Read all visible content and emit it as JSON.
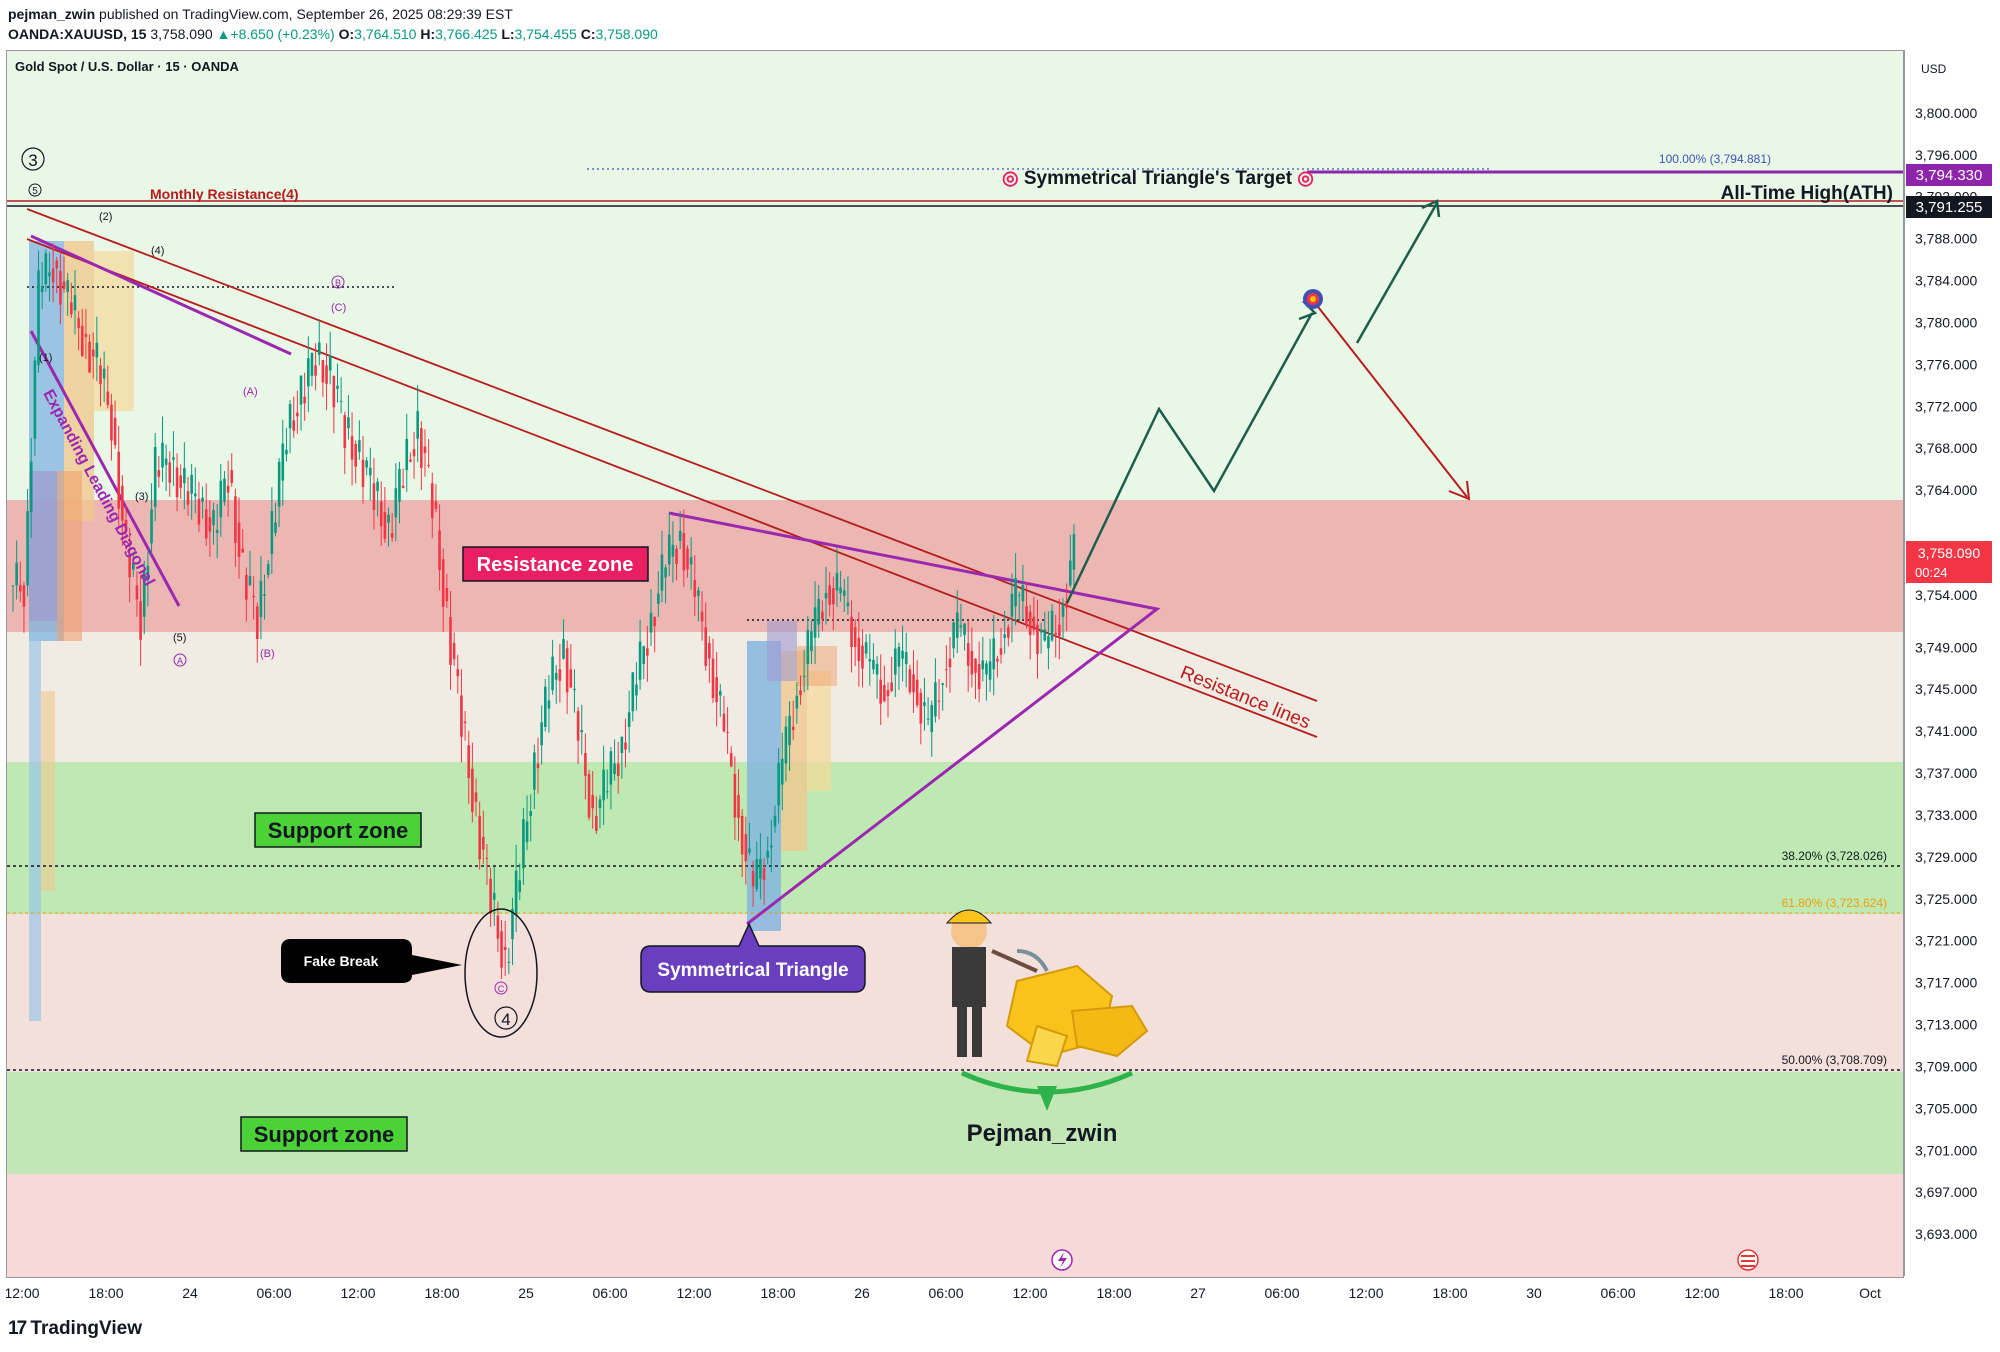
{
  "header": {
    "publisher": "pejman_zwin",
    "published_text": "published on TradingView.com, Sep",
    "published_date": "tember 26, 2025 08:29:39 EST",
    "symbol": "OANDA:XAUUSD, 15",
    "last": "3,758.090",
    "change": "+8.650 (+0.23%)",
    "open_label": "O:",
    "open": "3,764.510",
    "high_label": "H:",
    "high": "3,766.425",
    "low_label": "L:",
    "low": "3,754.455",
    "close_label": "C:",
    "close": "3,758.090"
  },
  "legend_title": "Gold Spot / U.S. Dollar · 15 · OANDA",
  "currency": "USD",
  "footer_brand": "TradingView",
  "colors": {
    "up": "#089981",
    "down": "#f23645",
    "purple": "#9c27b0",
    "resistance_line": "#b71c1c",
    "target": "#8e24aa",
    "current_price": "#f23645",
    "projection": "#1b5e4b"
  },
  "chart_data": {
    "type": "candlestick",
    "symbol": "XAUUSD",
    "timeframe": "15",
    "ylim": [
      3689,
      3806
    ],
    "price_ticks": [
      "3,800.000",
      "3,796.000",
      "3,792.000",
      "3,788.000",
      "3,784.000",
      "3,780.000",
      "3,776.000",
      "3,772.000",
      "3,768.000",
      "3,764.000",
      "3,758.000",
      "3,754.000",
      "3,749.000",
      "3,745.000",
      "3,741.000",
      "3,737.000",
      "3,733.000",
      "3,729.000",
      "3,725.000",
      "3,721.000",
      "3,717.000",
      "3,713.000",
      "3,709.000",
      "3,705.000",
      "3,701.000",
      "3,697.000",
      "3,693.000"
    ],
    "time_ticks": [
      "12:00",
      "18:00",
      "24",
      "06:00",
      "12:00",
      "18:00",
      "25",
      "06:00",
      "12:00",
      "18:00",
      "26",
      "06:00",
      "12:00",
      "18:00",
      "27",
      "06:00",
      "12:00",
      "18:00",
      "30",
      "06:00",
      "12:00",
      "18:00",
      "Oct"
    ],
    "price_labels": {
      "target": "3,794.330",
      "ath": "3,791.255",
      "current": "3,758.090",
      "countdown": "00:24"
    },
    "fib_levels": [
      {
        "label": "100.00% (3,794.881)",
        "price": 3794.881
      },
      {
        "label": "38.20% (3,728.026)",
        "price": 3728.026
      },
      {
        "label": "61.80% (3,723.624)",
        "price": 3723.624
      },
      {
        "label": "50.00% (3,708.709)",
        "price": 3708.709
      }
    ],
    "zones": [
      {
        "name": "Resistance zone",
        "from": 3750.6,
        "to": 3763.3
      },
      {
        "name": "Support zone",
        "from": 3723.6,
        "to": 3738.2
      },
      {
        "name": "Support zone",
        "from": 3698.8,
        "to": 3708.5
      }
    ],
    "candles_approx_close": [
      3755,
      3783,
      3786,
      3782,
      3779,
      3776,
      3771,
      3758,
      3752,
      3766,
      3767,
      3764,
      3763,
      3760,
      3766,
      3756,
      3752,
      3760,
      3770,
      3773,
      3777,
      3775,
      3770,
      3767,
      3764,
      3760,
      3766,
      3770,
      3763,
      3752,
      3742,
      3733,
      3725,
      3719,
      3728,
      3738,
      3745,
      3749,
      3741,
      3733,
      3736,
      3740,
      3746,
      3752,
      3757,
      3760,
      3754,
      3748,
      3741,
      3733,
      3726,
      3730,
      3738,
      3745,
      3750,
      3755,
      3754,
      3750,
      3747,
      3745,
      3748,
      3746,
      3741,
      3747,
      3751,
      3748,
      3746,
      3750,
      3754,
      3752,
      3749,
      3752,
      3758
    ]
  },
  "annotations": {
    "monthly_resistance": "Monthly Resistance(4)",
    "target_label": "Symmetrical Triangle's Target",
    "ath_label": "All-Time High(ATH)",
    "resistance_zone": "Resistance zone",
    "support_zone_1": "Support zone",
    "support_zone_2": "Support zone",
    "fake_break": "Fake Break",
    "symmetrical_triangle": "Symmetrical Triangle",
    "resistance_lines": "Resistance lines",
    "expanding_diagonal": "Expanding Leading Diagonal",
    "author_sig": "Pejman_zwin",
    "wave_3": "3",
    "wave_5": "5",
    "wave_4": "4",
    "wave_c_small": "C",
    "sub_1": "(1)",
    "sub_2": "(2)",
    "sub_3": "(3)",
    "sub_4": "(4)",
    "sub_5": "(5)",
    "circ_a": "A",
    "circ_b": "B",
    "paren_a": "(A)",
    "paren_b": "(B)",
    "paren_c": "(C)"
  }
}
